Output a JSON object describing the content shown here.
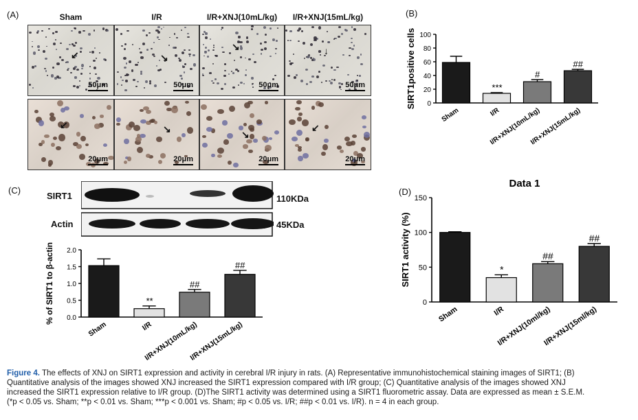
{
  "panel_letters": {
    "a": "(A)",
    "b": "(B)",
    "c": "(C)",
    "d": "(D)"
  },
  "panel_a": {
    "columns": [
      "Sham",
      "I/R",
      "I/R+XNJ(10mL/kg)",
      "I/R+XNJ(15mL/kg)"
    ],
    "scale_top": "50μm",
    "scale_bottom": "20μm"
  },
  "panel_c": {
    "blot_rows": [
      {
        "label": "SIRT1",
        "size": "110KDa"
      },
      {
        "label": "Actin",
        "size": "45KDa"
      }
    ]
  },
  "chart_data": [
    {
      "id": "B",
      "type": "bar",
      "title": "",
      "xlabel": "",
      "ylabel": "SIRT1positive cells",
      "categories": [
        "Sham",
        "I/R",
        "I/R+XNJ(10mL/kg)",
        "I/R+XNJ(15mL/kg)"
      ],
      "values": [
        59,
        14,
        31,
        47
      ],
      "errors": [
        9,
        1,
        3,
        2
      ],
      "annotations": [
        "",
        "***",
        "#",
        "##"
      ],
      "ylim": [
        0,
        100
      ],
      "yticks": [
        "0",
        "20",
        "40",
        "60",
        "80",
        "100"
      ],
      "bar_colors": [
        "#1a1a1a",
        "#e2e2e2",
        "#7a7a7a",
        "#383838"
      ]
    },
    {
      "id": "C",
      "type": "bar",
      "title": "",
      "xlabel": "",
      "ylabel": "% of SIRT1 to β-actin",
      "categories": [
        "Sham",
        "I/R",
        "I/R+XNJ(10mL/kg)",
        "I/R+XNJ(15mL/kg)"
      ],
      "values": [
        1.53,
        0.25,
        0.74,
        1.27
      ],
      "errors": [
        0.2,
        0.08,
        0.08,
        0.12
      ],
      "annotations": [
        "",
        "**",
        "##",
        "##"
      ],
      "ylim": [
        0,
        2.0
      ],
      "yticks": [
        "0.0",
        "0.5",
        "1.0",
        "1.5",
        "2.0"
      ],
      "bar_colors": [
        "#1a1a1a",
        "#e2e2e2",
        "#7a7a7a",
        "#383838"
      ]
    },
    {
      "id": "D",
      "type": "bar",
      "title": "Data 1",
      "xlabel": "",
      "ylabel": "SIRT1 activity (%)",
      "categories": [
        "Sham",
        "I/R",
        "I/R+XNJ(10ml/kg)",
        "I/R+XNJ(15ml/kg)"
      ],
      "values": [
        100,
        35,
        55,
        80
      ],
      "errors": [
        1,
        4,
        3,
        4
      ],
      "annotations": [
        "",
        "*",
        "##",
        "##"
      ],
      "ylim": [
        0,
        150
      ],
      "yticks": [
        "0",
        "50",
        "100",
        "150"
      ],
      "bar_colors": [
        "#1a1a1a",
        "#e2e2e2",
        "#7a7a7a",
        "#383838"
      ]
    }
  ],
  "caption": {
    "figure_label": "Figure 4.",
    "line1": "The effects of XNJ on SIRT1 expression and activity in cerebral I/R injury in rats. (A) Representative immunohistochemical staining images of SIRT1; (B)",
    "line2": "Quantitative analysis of the images showed XNJ increased the SIRT1 expression compared with I/R group; (C) Quantitative analysis of the images showed XNJ",
    "line3": "increased the SIRT1 expression relative to I/R group. (D)The SIRT1 activity was determined using a SIRT1 fluorometric assay. Data are expressed as mean ± S.E.M.",
    "line4": "(*p < 0.05 vs. Sham; **p < 0.01 vs. Sham; ***p < 0.001 vs. Sham; #p < 0.05 vs. I/R; ##p < 0.01 vs. I/R). n = 4 in each group."
  }
}
